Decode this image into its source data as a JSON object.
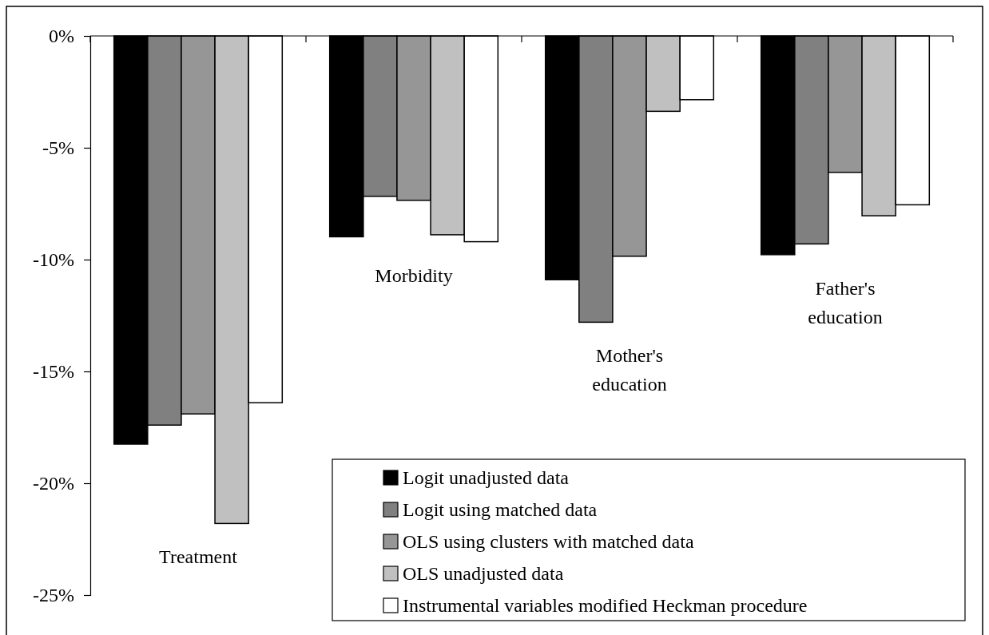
{
  "chart_data": {
    "type": "bar",
    "categories": [
      "Treatment",
      "Morbidity",
      "Mother's education",
      "Father's education"
    ],
    "series": [
      {
        "name": "Logit unadjusted data",
        "color": "#000000",
        "values": [
          -18.25,
          -8.98,
          -10.9,
          -9.78
        ]
      },
      {
        "name": "Logit using matched data",
        "color": "#808080",
        "values": [
          -17.4,
          -7.17,
          -12.8,
          -9.3
        ]
      },
      {
        "name": "OLS using clusters with matched data",
        "color": "#969696",
        "values": [
          -16.9,
          -7.35,
          -9.85,
          -6.1
        ]
      },
      {
        "name": "OLS unadjusted data",
        "color": "#c0c0c0",
        "values": [
          -21.8,
          -8.89,
          -3.37,
          -8.04
        ]
      },
      {
        "name": "Instrumental variables modified Heckman procedure",
        "color": "#ffffff",
        "values": [
          -16.4,
          -9.2,
          -2.85,
          -7.55
        ]
      }
    ],
    "ylim": [
      -25,
      0
    ],
    "yticks": [
      {
        "value": 0,
        "label": "0%"
      },
      {
        "value": -5,
        "label": "-5%"
      },
      {
        "value": -10,
        "label": "-10%"
      },
      {
        "value": -15,
        "label": "-15%"
      },
      {
        "value": -20,
        "label": "-20%"
      },
      {
        "value": -25,
        "label": "-25%"
      }
    ],
    "grid": false,
    "legend": "bottom right"
  }
}
